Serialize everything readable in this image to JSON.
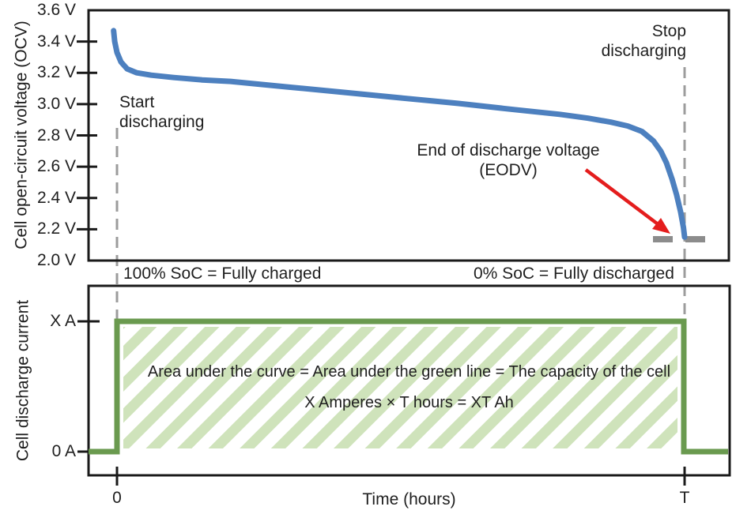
{
  "colors": {
    "curve_blue": "#4d80bf",
    "line_green": "#6a9a4f",
    "hatch_green": "#cfe3bb",
    "dash_gray": "#9c9c9c",
    "eodv_marker_gray": "#8c8c8c",
    "annotation_red": "#e41d1d",
    "axis_black": "#1a1a1a",
    "text_black": "#1f1f1f"
  },
  "chart_data": [
    {
      "type": "line",
      "title": "",
      "ylabel": "Cell open-circuit voltage (OCV)",
      "xlabel": "",
      "ylim": [
        2.0,
        3.6
      ],
      "grid": false,
      "y_ticks": [
        {
          "label": "3.6 V",
          "value": 3.6,
          "tick": false
        },
        {
          "label": "3.4 V",
          "value": 3.4,
          "tick": true
        },
        {
          "label": "3.2 V",
          "value": 3.2,
          "tick": true
        },
        {
          "label": "3.0 V",
          "value": 3.0,
          "tick": true
        },
        {
          "label": "2.8 V",
          "value": 2.8,
          "tick": true
        },
        {
          "label": "2.6 V",
          "value": 2.6,
          "tick": true
        },
        {
          "label": "2.4 V",
          "value": 2.4,
          "tick": true
        },
        {
          "label": "2.2 V",
          "value": 2.2,
          "tick": true
        },
        {
          "label": "2.0 V",
          "value": 2.0,
          "tick": false
        }
      ],
      "series": [
        {
          "name": "ocv-discharge-curve",
          "color": "#4d80bf",
          "x_unit": "fraction of total discharge time T",
          "y_unit": "volts",
          "points": [
            [
              -0.006,
              3.47
            ],
            [
              -0.004,
              3.4
            ],
            [
              0.0,
              3.33
            ],
            [
              0.007,
              3.27
            ],
            [
              0.018,
              3.225
            ],
            [
              0.035,
              3.2
            ],
            [
              0.06,
              3.185
            ],
            [
              0.1,
              3.17
            ],
            [
              0.15,
              3.155
            ],
            [
              0.2,
              3.145
            ],
            [
              0.3,
              3.11
            ],
            [
              0.4,
              3.075
            ],
            [
              0.5,
              3.04
            ],
            [
              0.6,
              3.005
            ],
            [
              0.7,
              2.965
            ],
            [
              0.78,
              2.935
            ],
            [
              0.83,
              2.91
            ],
            [
              0.87,
              2.885
            ],
            [
              0.9,
              2.86
            ],
            [
              0.925,
              2.825
            ],
            [
              0.945,
              2.765
            ],
            [
              0.958,
              2.7
            ],
            [
              0.968,
              2.625
            ],
            [
              0.978,
              2.52
            ],
            [
              0.986,
              2.42
            ],
            [
              0.993,
              2.31
            ],
            [
              0.998,
              2.21
            ],
            [
              1.0,
              2.15
            ]
          ]
        }
      ],
      "key_values": {
        "start_ocv_v": 3.47,
        "plateau_ocv_v": 3.2,
        "eodv_v": 2.15
      },
      "annotations": {
        "start_line1": "Start",
        "start_line2": "discharging",
        "stop_line1": "Stop",
        "stop_line2": "discharging",
        "eodv_line1": "End of discharge voltage",
        "eodv_line2": "(EODV)"
      },
      "soc_left": "100% SoC = Fully charged",
      "soc_right": "0% SoC = Fully discharged"
    },
    {
      "type": "line",
      "title": "",
      "ylabel": "Cell discharge current",
      "xlabel": "Time (hours)",
      "grid": false,
      "y_ticks": [
        {
          "label": "X A",
          "value": 1,
          "tick": true
        },
        {
          "label": "0 A",
          "value": 0,
          "tick": true
        }
      ],
      "x_ticks": [
        {
          "label": "0",
          "t": 0
        },
        {
          "label": "T",
          "t": 1
        }
      ],
      "series": [
        {
          "name": "discharge-current-step",
          "color": "#6a9a4f",
          "x_unit": "fraction of total discharge time T",
          "y_unit": "fraction of X amperes",
          "points": [
            [
              -0.0501,
              0
            ],
            [
              0,
              0
            ],
            [
              0,
              1
            ],
            [
              0.9986,
              1
            ],
            [
              0.9986,
              0
            ],
            [
              1.0766,
              0
            ]
          ]
        }
      ],
      "area_line1": "Area under the curve = Area under the green line = The capacity of the cell",
      "area_line2": "X Amperes × T hours =  XT Ah"
    }
  ]
}
